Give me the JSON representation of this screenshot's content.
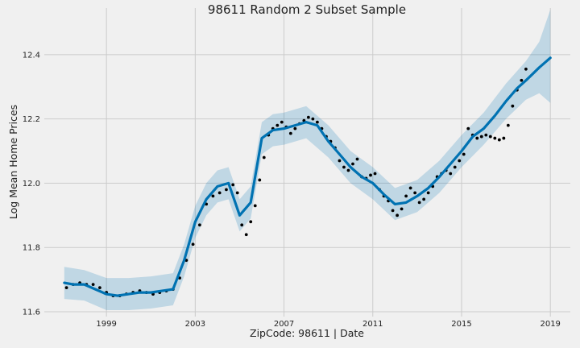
{
  "chart_data": {
    "type": "line",
    "title": "98611 Random 2 Subset Sample",
    "xlabel": "ZipCode: 98611 | Date",
    "ylabel": "Log Mean Home Prices",
    "xlim": [
      1996.2,
      2019.9
    ],
    "ylim": [
      11.585,
      12.545
    ],
    "x_ticks": [
      1999,
      2003,
      2007,
      2011,
      2015,
      2019
    ],
    "y_ticks": [
      11.6,
      11.8,
      12.0,
      12.2,
      12.4
    ],
    "x_tick_labels": [
      "1999",
      "2003",
      "2007",
      "2011",
      "2015",
      "2019"
    ],
    "y_tick_labels": [
      "11.6",
      "11.8",
      "12.0",
      "12.2",
      "12.4"
    ],
    "grid": true,
    "colors": {
      "forecast_line": "#0072B2",
      "uncertainty_band": "#0072B2",
      "observed_points": "#000000",
      "background": "#f0f0f0",
      "grid": "#cbcbcb"
    },
    "series": [
      {
        "kind": "forecast",
        "x": [
          1997.1,
          1997.5,
          1998.0,
          1998.5,
          1999.0,
          1999.5,
          2000.0,
          2000.5,
          2001.0,
          2001.5,
          2002.0,
          2002.5,
          2003.0,
          2003.5,
          2004.0,
          2004.5,
          2005.0,
          2005.5,
          2006.0,
          2006.5,
          2007.0,
          2007.5,
          2008.0,
          2008.5,
          2009.0,
          2009.5,
          2010.0,
          2010.5,
          2011.0,
          2011.5,
          2012.0,
          2012.5,
          2013.0,
          2013.5,
          2014.0,
          2014.5,
          2015.0,
          2015.5,
          2016.0,
          2016.5,
          2017.0,
          2017.5,
          2017.9,
          2018.2,
          2018.5,
          2019.0
        ],
        "y": [
          11.69,
          11.685,
          11.685,
          11.67,
          11.655,
          11.65,
          11.655,
          11.66,
          11.66,
          11.665,
          11.67,
          11.76,
          11.88,
          11.95,
          11.99,
          12.0,
          11.9,
          11.94,
          12.14,
          12.165,
          12.17,
          12.18,
          12.19,
          12.18,
          12.13,
          12.09,
          12.05,
          12.02,
          12.0,
          11.965,
          11.935,
          11.94,
          11.96,
          11.985,
          12.02,
          12.06,
          12.1,
          12.145,
          12.17,
          12.21,
          12.255,
          12.295,
          12.32,
          12.34,
          12.36,
          12.39
        ]
      },
      {
        "kind": "uncertainty_upper",
        "x": [
          1997.1,
          1998.0,
          1999.0,
          2000.0,
          2001.0,
          2002.0,
          2002.5,
          2003.0,
          2003.5,
          2004.0,
          2004.5,
          2005.0,
          2005.5,
          2006.0,
          2006.5,
          2007.0,
          2008.0,
          2009.0,
          2010.0,
          2011.0,
          2012.0,
          2013.0,
          2014.0,
          2015.0,
          2016.0,
          2017.0,
          2017.9,
          2018.5,
          2019.0
        ],
        "y": [
          11.74,
          11.73,
          11.705,
          11.705,
          11.71,
          11.72,
          11.81,
          11.93,
          12.0,
          12.04,
          12.05,
          11.95,
          11.99,
          12.19,
          12.215,
          12.22,
          12.24,
          12.18,
          12.1,
          12.05,
          11.985,
          12.01,
          12.07,
          12.15,
          12.22,
          12.31,
          12.38,
          12.44,
          12.54
        ]
      },
      {
        "kind": "uncertainty_lower",
        "x": [
          1997.1,
          1998.0,
          1999.0,
          2000.0,
          2001.0,
          2002.0,
          2002.5,
          2003.0,
          2003.5,
          2004.0,
          2004.5,
          2005.0,
          2005.5,
          2006.0,
          2006.5,
          2007.0,
          2008.0,
          2009.0,
          2010.0,
          2011.0,
          2012.0,
          2013.0,
          2014.0,
          2015.0,
          2016.0,
          2017.0,
          2017.9,
          2018.5,
          2019.0
        ],
        "y": [
          11.64,
          11.635,
          11.605,
          11.605,
          11.61,
          11.62,
          11.71,
          11.83,
          11.9,
          11.94,
          11.95,
          11.85,
          11.89,
          12.09,
          12.115,
          12.12,
          12.14,
          12.08,
          12.0,
          11.95,
          11.885,
          11.91,
          11.97,
          12.05,
          12.12,
          12.2,
          12.26,
          12.28,
          12.25
        ]
      },
      {
        "kind": "observed",
        "x": [
          1997.2,
          1997.5,
          1997.8,
          1998.1,
          1998.4,
          1998.7,
          1999.0,
          1999.3,
          1999.6,
          1999.9,
          2000.2,
          2000.5,
          2000.8,
          2001.1,
          2001.4,
          2001.7,
          2002.0,
          2002.3,
          2002.6,
          2002.9,
          2003.2,
          2003.5,
          2003.8,
          2004.1,
          2004.4,
          2004.7,
          2004.9,
          2005.1,
          2005.3,
          2005.5,
          2005.7,
          2005.9,
          2006.1,
          2006.3,
          2006.5,
          2006.7,
          2006.9,
          2007.1,
          2007.3,
          2007.5,
          2007.7,
          2007.9,
          2008.1,
          2008.3,
          2008.5,
          2008.7,
          2008.9,
          2009.1,
          2009.3,
          2009.5,
          2009.7,
          2009.9,
          2010.1,
          2010.3,
          2010.5,
          2010.7,
          2010.9,
          2011.1,
          2011.3,
          2011.5,
          2011.7,
          2011.9,
          2012.1,
          2012.3,
          2012.5,
          2012.7,
          2012.9,
          2013.1,
          2013.3,
          2013.5,
          2013.7,
          2013.9,
          2014.1,
          2014.3,
          2014.5,
          2014.7,
          2014.9,
          2015.1,
          2015.3,
          2015.5,
          2015.7,
          2015.9,
          2016.1,
          2016.3,
          2016.5,
          2016.7,
          2016.9,
          2017.1,
          2017.3,
          2017.5,
          2017.7,
          2017.9
        ],
        "y": [
          11.675,
          11.685,
          11.69,
          11.685,
          11.685,
          11.675,
          11.66,
          11.65,
          11.65,
          11.655,
          11.66,
          11.665,
          11.66,
          11.655,
          11.66,
          11.665,
          11.67,
          11.705,
          11.76,
          11.81,
          11.87,
          11.935,
          11.96,
          11.97,
          11.98,
          11.995,
          11.97,
          11.87,
          11.84,
          11.88,
          11.93,
          12.01,
          12.08,
          12.15,
          12.17,
          12.18,
          12.19,
          12.175,
          12.155,
          12.17,
          12.185,
          12.195,
          12.205,
          12.2,
          12.19,
          12.17,
          12.145,
          12.13,
          12.11,
          12.07,
          12.05,
          12.04,
          12.06,
          12.075,
          12.02,
          12.015,
          12.025,
          12.03,
          11.98,
          11.96,
          11.945,
          11.915,
          11.9,
          11.92,
          11.96,
          11.985,
          11.97,
          11.94,
          11.95,
          11.97,
          11.99,
          12.02,
          12.03,
          12.04,
          12.03,
          12.05,
          12.07,
          12.09,
          12.17,
          12.15,
          12.14,
          12.145,
          12.15,
          12.145,
          12.14,
          12.135,
          12.14,
          12.18,
          12.24,
          12.29,
          12.32,
          12.355
        ]
      }
    ]
  }
}
